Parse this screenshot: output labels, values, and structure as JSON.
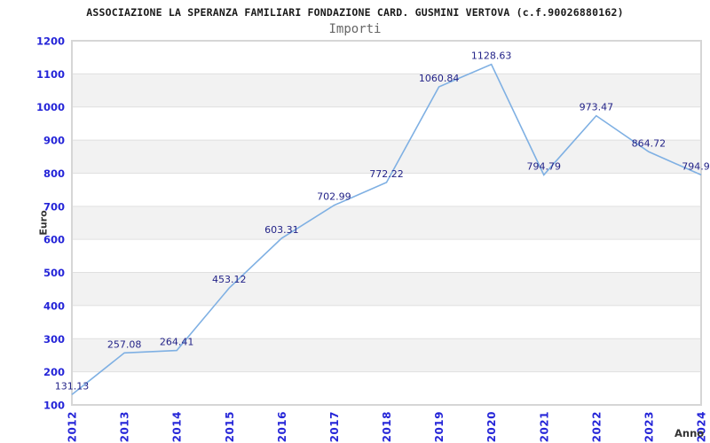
{
  "chart_data": {
    "type": "line",
    "title": "ASSOCIAZIONE LA SPERANZA FAMILIARI FONDAZIONE CARD. GUSMINI VERTOVA (c.f.90026880162)",
    "subtitle": "Importi",
    "xlabel": "Anno",
    "ylabel": "Euro",
    "categories": [
      "2012",
      "2013",
      "2014",
      "2015",
      "2016",
      "2017",
      "2018",
      "2019",
      "2020",
      "2021",
      "2022",
      "2023",
      "2024"
    ],
    "series": [
      {
        "name": "Importi",
        "values": [
          131.13,
          257.08,
          264.41,
          453.12,
          603.31,
          702.99,
          772.22,
          1060.84,
          1128.63,
          794.79,
          973.47,
          864.72,
          794.9
        ]
      }
    ],
    "data_labels": [
      "131.13",
      "257.08",
      "264.41",
      "453.12",
      "603.31",
      "702.99",
      "772.22",
      "1060.84",
      "1128.63",
      "794.79",
      "973.47",
      "864.72",
      "794.9"
    ],
    "ylim": [
      100,
      1200
    ],
    "ytick_step": 100,
    "yticks": [
      "100",
      "200",
      "300",
      "400",
      "500",
      "600",
      "700",
      "800",
      "900",
      "1000",
      "1100",
      "1200"
    ],
    "grid": "horizontal alternating shaded bands, no vertical gridlines",
    "legend": "none",
    "markers": "none",
    "colors": {
      "line": "#7fb0e3",
      "axis_tick_label": "#2525d8",
      "data_label": "#232388",
      "band_fill": "#f2f2f2",
      "grid_line": "#e0e0e0",
      "plot_border": "#d6d6d6",
      "title": "#1a1a1a",
      "subtitle": "#666666",
      "axis_title": "#333333",
      "background": "#ffffff"
    }
  }
}
